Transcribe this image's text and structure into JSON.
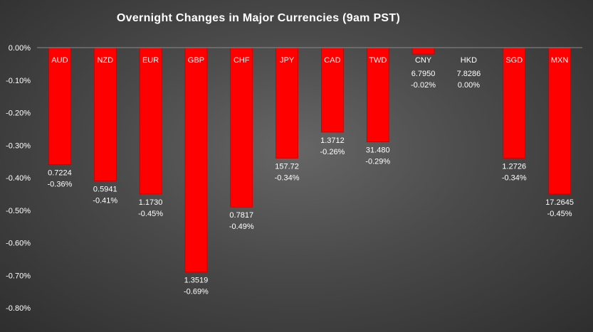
{
  "colors": {
    "bar": "#ff0000",
    "bar_edge": "#b00000",
    "text": "#ffffff",
    "axis_line": "#8a8a8a"
  },
  "chart_data": {
    "type": "bar",
    "title": "Overnight Changes in Major Currencies (9am PST)",
    "xlabel": "",
    "ylabel": "",
    "ylim": [
      -0.8,
      0.0
    ],
    "y_ticks": [
      "0.00%",
      "-0.10%",
      "-0.20%",
      "-0.30%",
      "-0.40%",
      "-0.50%",
      "-0.60%",
      "-0.70%",
      "-0.80%"
    ],
    "grid": false,
    "legend": "none",
    "categories": [
      "AUD",
      "NZD",
      "EUR",
      "GBP",
      "CHF",
      "JPY",
      "CAD",
      "TWD",
      "CNY",
      "HKD",
      "SGD",
      "MXN"
    ],
    "values": [
      -0.36,
      -0.41,
      -0.45,
      -0.69,
      -0.49,
      -0.34,
      -0.26,
      -0.29,
      -0.02,
      0.0,
      -0.34,
      -0.45
    ],
    "rates": [
      "0.7224",
      "0.5941",
      "1.1730",
      "1.3519",
      "0.7817",
      "157.72",
      "1.3712",
      "31.480",
      "6.7950",
      "7.8286",
      "1.2726",
      "17.2645"
    ],
    "value_labels": [
      "-0.36%",
      "-0.41%",
      "-0.45%",
      "-0.69%",
      "-0.49%",
      "-0.34%",
      "-0.26%",
      "-0.29%",
      "-0.02%",
      "0.00%",
      "-0.34%",
      "-0.45%"
    ]
  }
}
